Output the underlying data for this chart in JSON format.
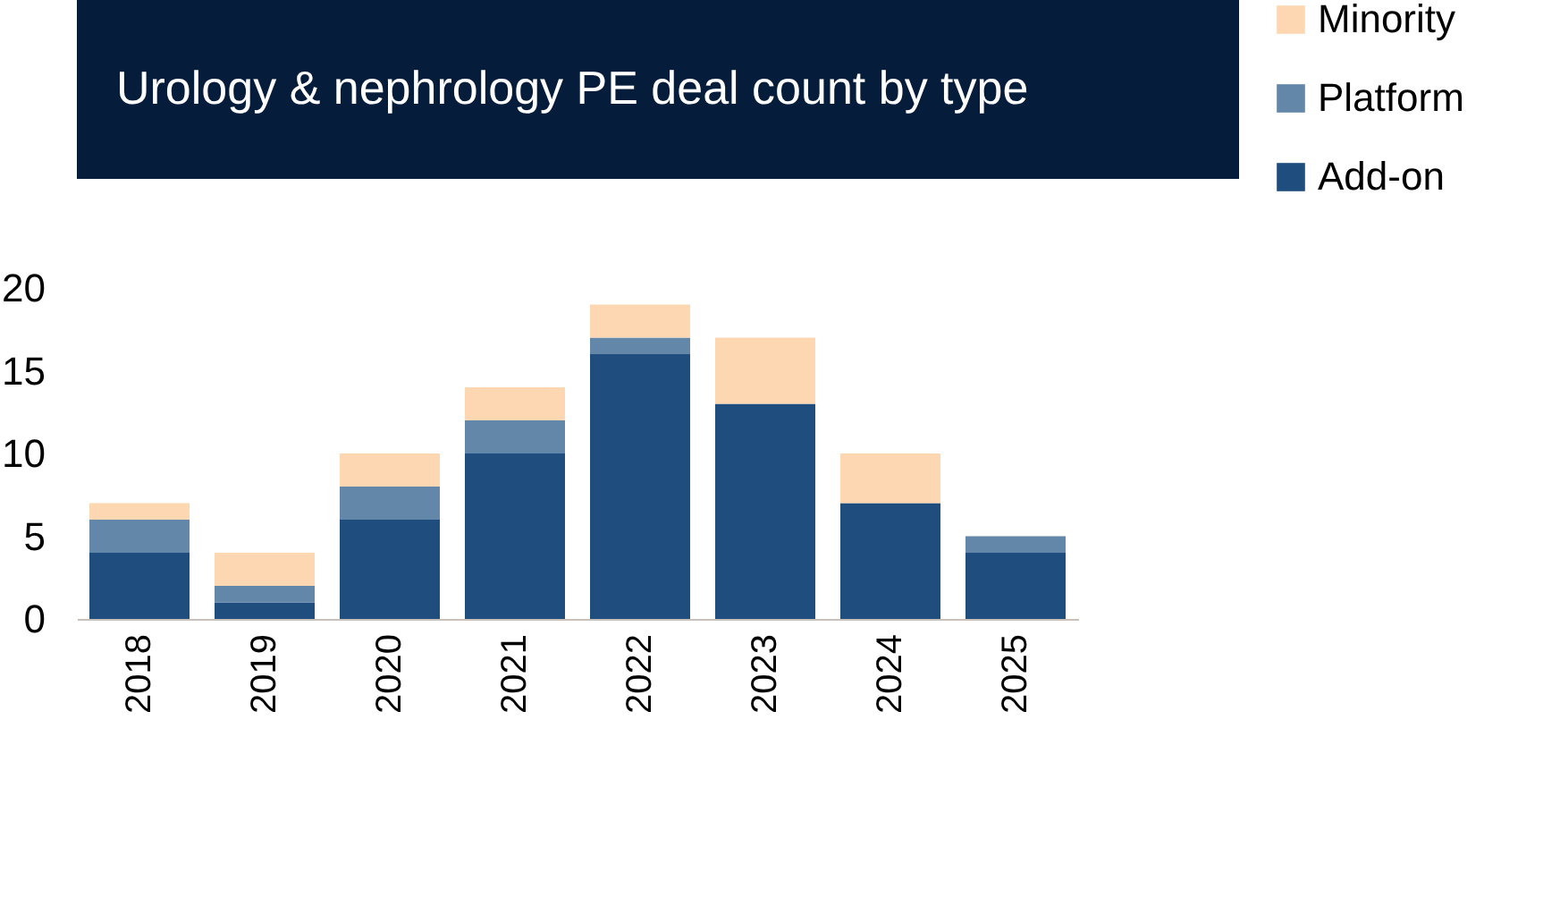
{
  "chart_data": {
    "type": "bar",
    "title": "Urology & nephrology PE deal count by type",
    "categories": [
      "2018",
      "2019",
      "2020",
      "2021",
      "2022",
      "2023",
      "2024",
      "2025"
    ],
    "stacked": true,
    "series": [
      {
        "name": "Add-on",
        "color": "#1f4e7e",
        "values": [
          4,
          1,
          6,
          10,
          16,
          13,
          7,
          4
        ]
      },
      {
        "name": "Platform",
        "color": "#6287a9",
        "values": [
          2,
          1,
          2,
          2,
          1,
          0,
          0,
          1
        ]
      },
      {
        "name": "Minority",
        "color": "#fdd7b1",
        "values": [
          1,
          2,
          2,
          2,
          2,
          4,
          3,
          0
        ]
      }
    ],
    "ylim": [
      0,
      20
    ],
    "yticks": [
      0,
      5,
      10,
      15,
      20
    ],
    "grid": false,
    "legend": "right"
  }
}
